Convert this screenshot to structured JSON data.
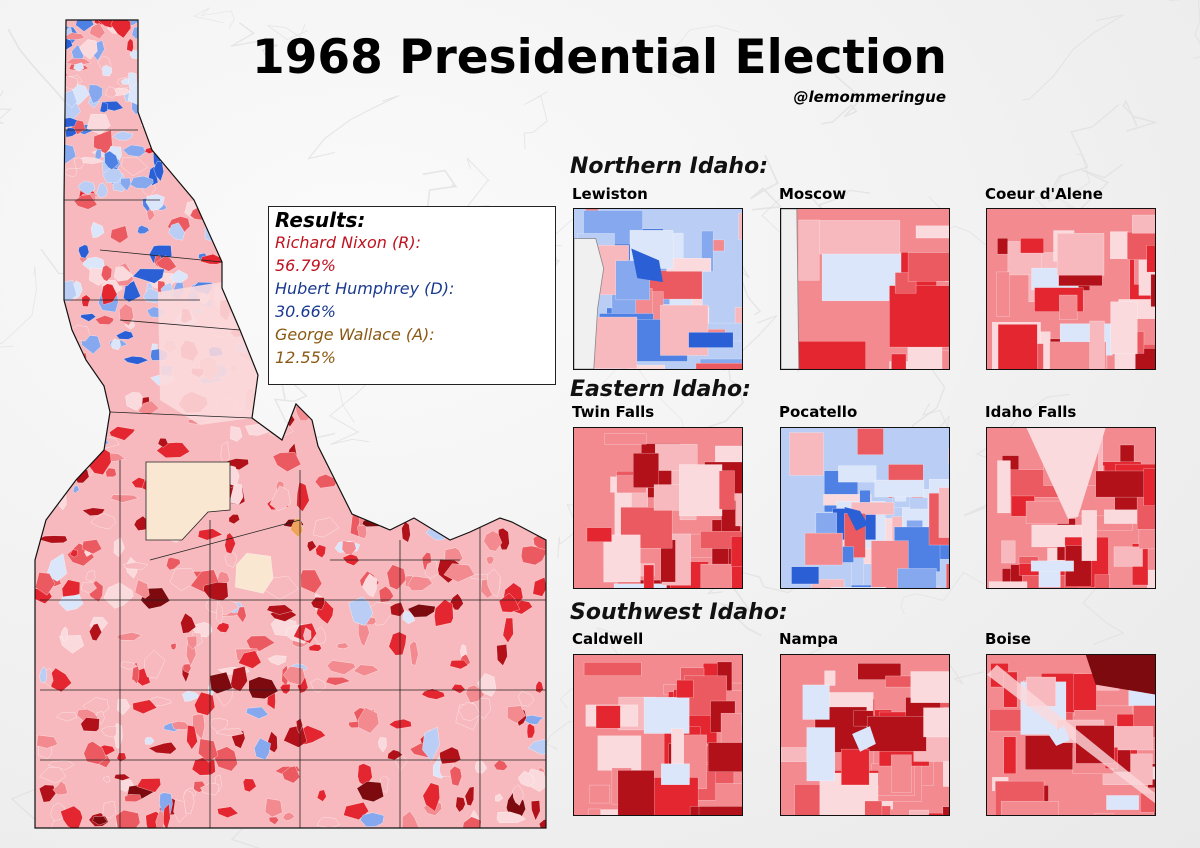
{
  "title": "1968 Presidential Election",
  "credit": "@lemommeringue",
  "results": {
    "heading": "Results:",
    "candidates": [
      {
        "name": "Richard Nixon (R):",
        "percent": "56.79%",
        "share": 56.79,
        "color": "#c1121f"
      },
      {
        "name": "Hubert Humphrey (D):",
        "percent": "30.66%",
        "share": 30.66,
        "color": "#1a3a8f"
      },
      {
        "name": "George Wallace (A):",
        "percent": "12.55%",
        "share": 12.55,
        "color": "#8a5a14"
      }
    ]
  },
  "sections": [
    {
      "title": "Northern Idaho:",
      "insets": [
        "Lewiston",
        "Moscow",
        "Coeur d'Alene"
      ]
    },
    {
      "title": "Eastern Idaho:",
      "insets": [
        "Twin Falls",
        "Pocatello",
        "Idaho Falls"
      ]
    },
    {
      "title": "Southwest Idaho:",
      "insets": [
        "Caldwell",
        "Nampa",
        "Boise"
      ]
    }
  ],
  "palette": {
    "republican": [
      "#fbdadd",
      "#f7b9bd",
      "#f28a90",
      "#ec5a61",
      "#e3262f",
      "#b3111a",
      "#7c0a0f"
    ],
    "democrat": [
      "#dbe6fa",
      "#b9cdf5",
      "#86a8ee",
      "#4f80e3",
      "#2a5fd6"
    ],
    "aip": [
      "#f9e7d2",
      "#f0a35a"
    ],
    "background": "#f3f3f3",
    "border": "#222222"
  }
}
